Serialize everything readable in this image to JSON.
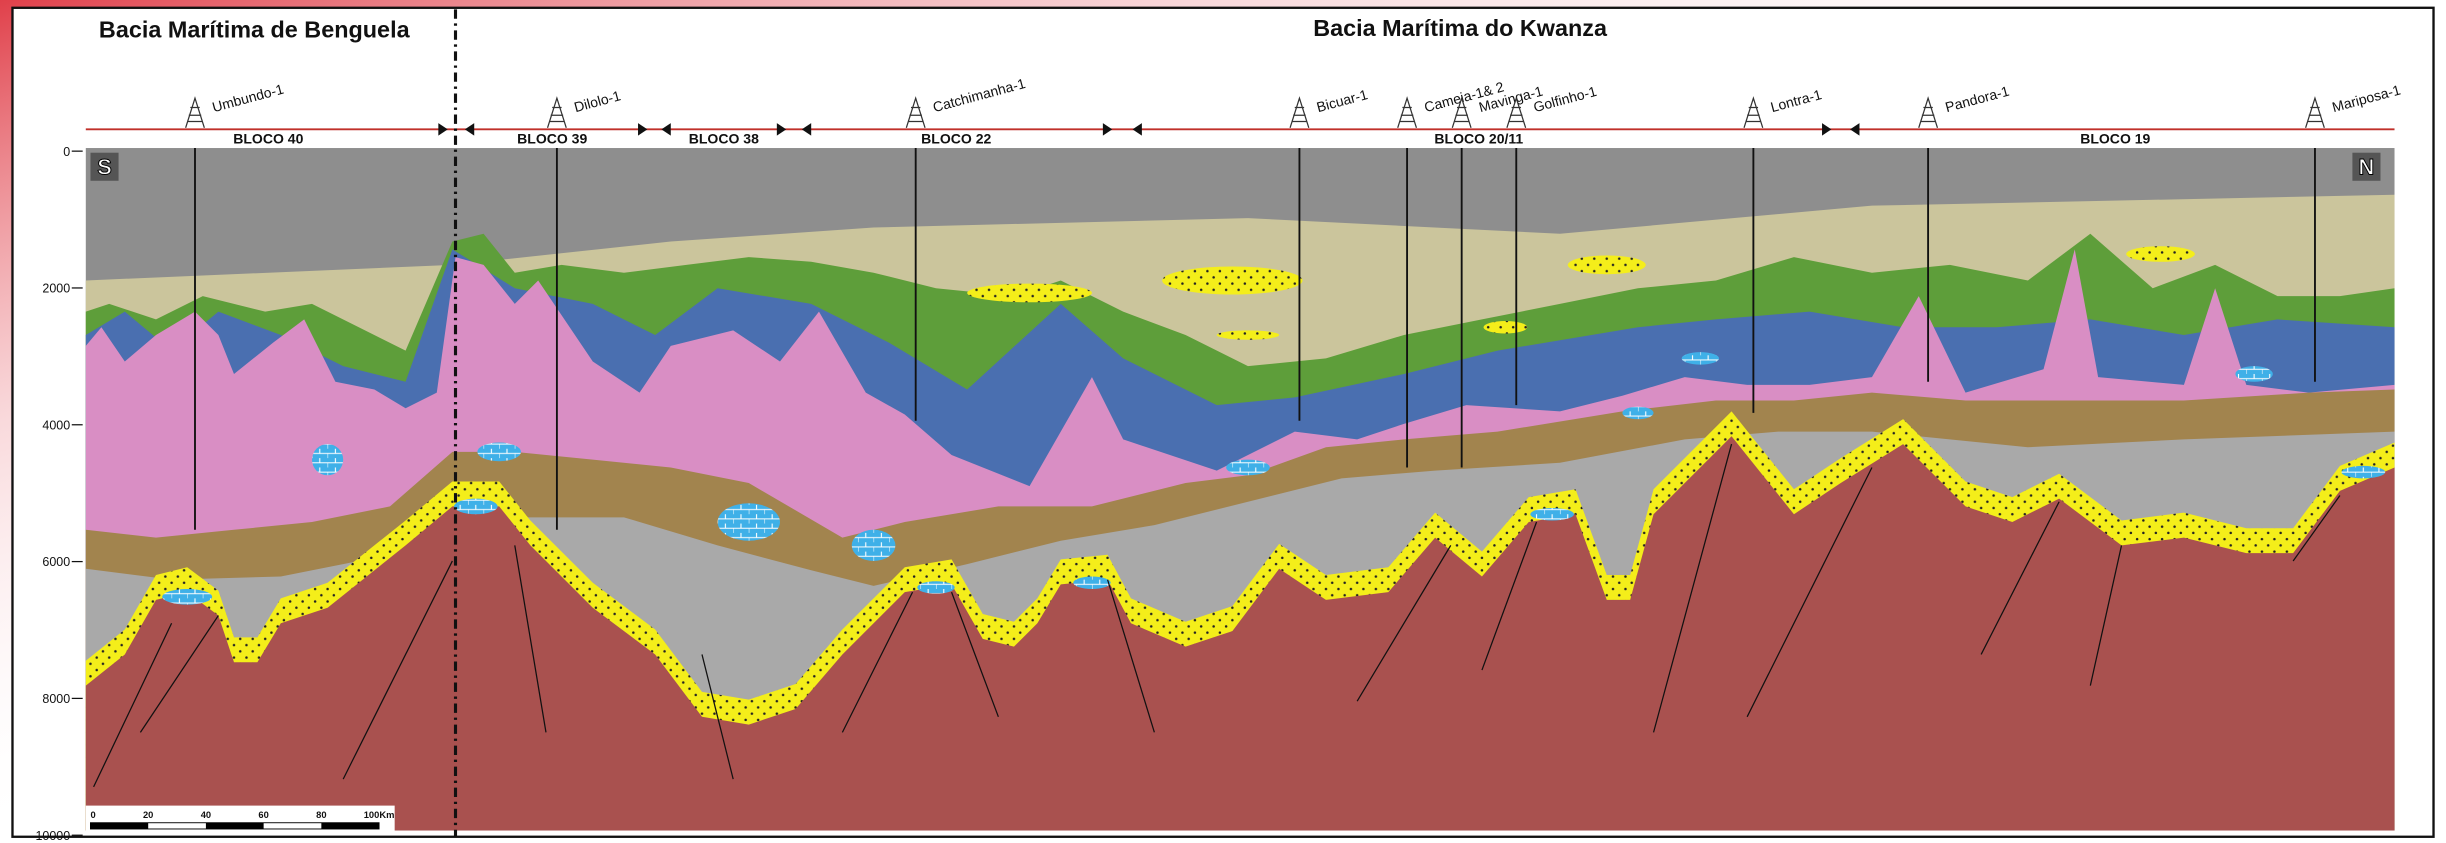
{
  "basins": [
    "Bacia Marítima de Benguela",
    "Bacia Marítima do Kwanza"
  ],
  "wells": [
    "Umbundo-1",
    "Dilolo-1",
    "Catchimanha-1",
    "Bicuar-1",
    "Cameia-1& 2",
    "Mavinga-1",
    "Golfinho-1",
    "Lontra-1",
    "Pandora-1",
    "Mariposa-1"
  ],
  "blocks": [
    "BLOCO 40",
    "BLOCO 39",
    "BLOCO 38",
    "BLOCO 22",
    "BLOCO 20/11",
    "BLOCO 19"
  ],
  "orientation": {
    "south": "S",
    "north": "N"
  },
  "depth_axis": {
    "ticks": [
      0,
      2000,
      4000,
      6000,
      8000,
      10000
    ]
  },
  "scale_bar": {
    "labels": [
      "0",
      "20",
      "40",
      "60",
      "80",
      "100Km"
    ]
  }
}
